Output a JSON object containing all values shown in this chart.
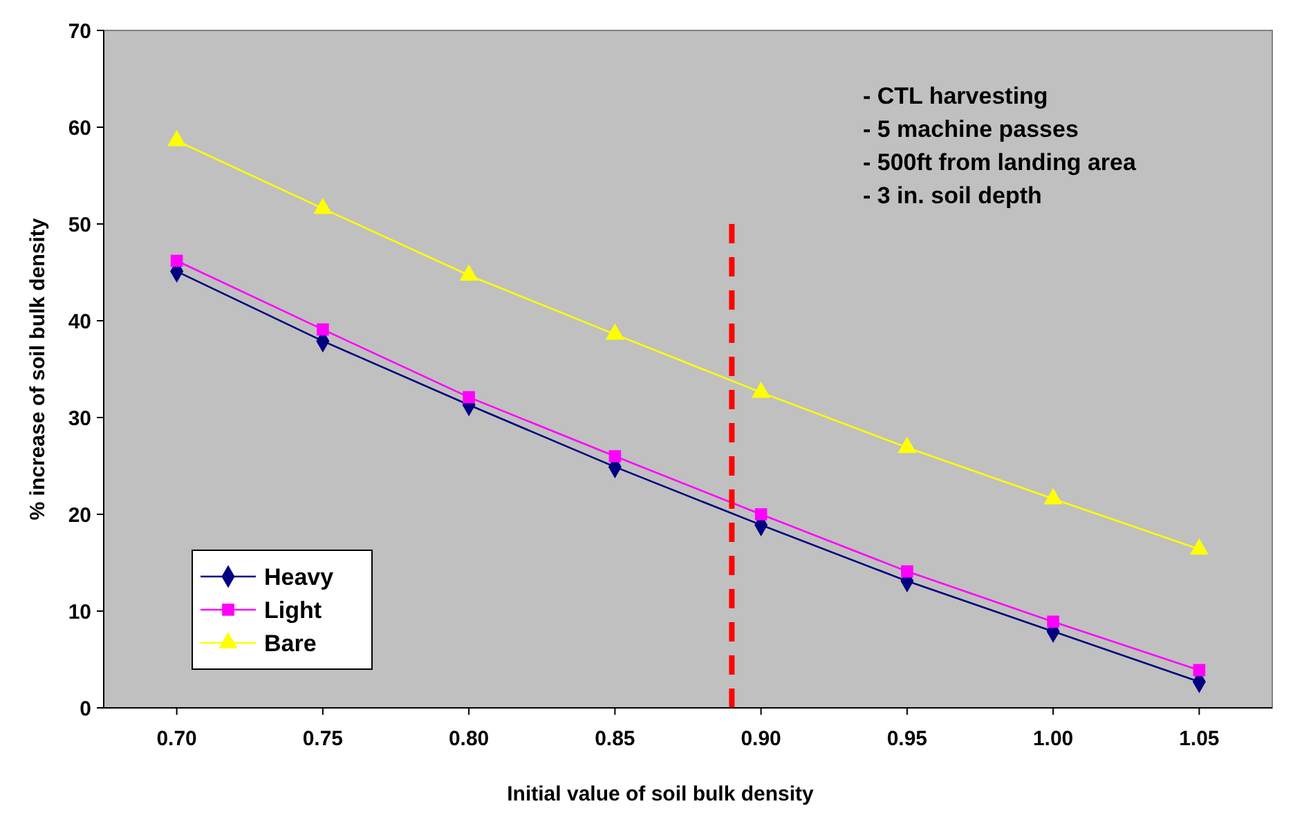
{
  "chart_data": {
    "type": "line",
    "xlabel": "Initial value of soil bulk density",
    "ylabel": "% increase of soil bulk density",
    "x": [
      0.7,
      0.75,
      0.8,
      0.85,
      0.9,
      0.95,
      1.0,
      1.05
    ],
    "xlim": [
      0.675,
      1.075
    ],
    "xticks": [
      {
        "value": 0.7,
        "label": "0.70"
      },
      {
        "value": 0.75,
        "label": "0.75"
      },
      {
        "value": 0.8,
        "label": "0.80"
      },
      {
        "value": 0.85,
        "label": "0.85"
      },
      {
        "value": 0.9,
        "label": "0.90"
      },
      {
        "value": 0.95,
        "label": "0.95"
      },
      {
        "value": 1.0,
        "label": "1.00"
      },
      {
        "value": 1.05,
        "label": "1.05"
      }
    ],
    "ylim": [
      0,
      70
    ],
    "yticks": [
      0,
      10,
      20,
      30,
      40,
      50,
      60,
      70
    ],
    "grid": false,
    "legend": "bottom left",
    "series": [
      {
        "name": "Heavy",
        "color": "#000080",
        "marker": "diamond",
        "values": [
          45.1,
          37.9,
          31.3,
          24.9,
          18.9,
          13.1,
          7.9,
          2.7
        ]
      },
      {
        "name": "Light",
        "color": "#ff00ff",
        "marker": "square",
        "values": [
          46.2,
          39.1,
          32.1,
          26.0,
          20.0,
          14.1,
          8.9,
          3.9
        ]
      },
      {
        "name": "Bare",
        "color": "#ffff00",
        "marker": "triangle",
        "values": [
          58.6,
          51.6,
          44.7,
          38.6,
          32.6,
          26.9,
          21.6,
          16.4
        ]
      }
    ],
    "ref_lines": [
      {
        "axis": "x",
        "value": 0.89,
        "color": "#ff0000",
        "line_style": "dashed"
      }
    ],
    "annotations": [
      "- CTL harvesting",
      "- 5 machine passes",
      "- 500ft from landing area",
      "- 3 in. soil depth"
    ]
  }
}
